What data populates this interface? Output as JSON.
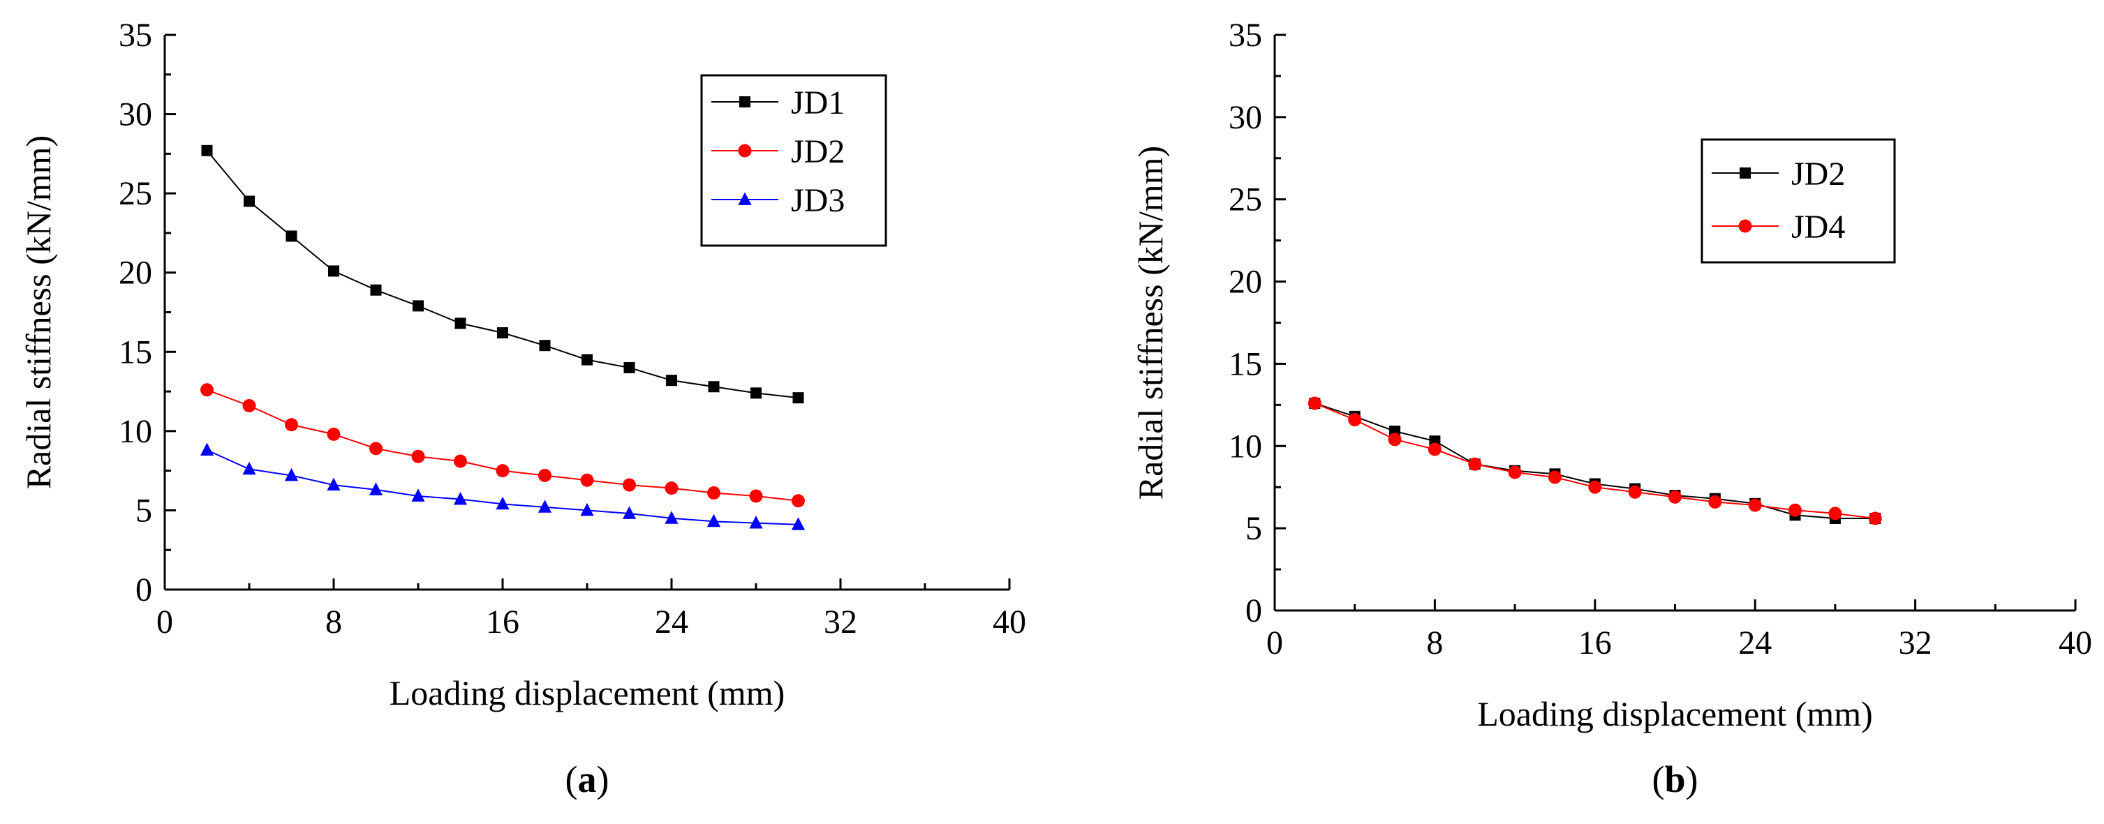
{
  "colors": {
    "axis": "#000000",
    "jd1": "#000000",
    "jd2": "#ff0000",
    "jd3": "#0000ff",
    "jd4": "#ff0000"
  },
  "chart_data": [
    {
      "type": "line",
      "panel_label": "a",
      "xlabel": "Loading displacement (mm)",
      "ylabel": "Radial stiffness (kN/mm)",
      "xlim": [
        0,
        40
      ],
      "ylim": [
        0,
        35
      ],
      "x_ticks": [
        0,
        8,
        16,
        24,
        32,
        40
      ],
      "y_ticks": [
        0,
        5,
        10,
        15,
        20,
        25,
        30,
        35
      ],
      "grid": false,
      "legend_position": "top-right",
      "x": [
        2,
        4,
        6,
        8,
        10,
        12,
        14,
        16,
        18,
        20,
        22,
        24,
        26,
        28,
        30
      ],
      "series": [
        {
          "name": "JD1",
          "marker": "square",
          "color": "#000000",
          "values": [
            27.7,
            24.5,
            22.3,
            20.1,
            18.9,
            17.9,
            16.8,
            16.2,
            15.4,
            14.5,
            14.0,
            13.2,
            12.8,
            12.4,
            12.1
          ]
        },
        {
          "name": "JD2",
          "marker": "circle",
          "color": "#ff0000",
          "values": [
            12.6,
            11.6,
            10.4,
            9.8,
            8.9,
            8.4,
            8.1,
            7.5,
            7.2,
            6.9,
            6.6,
            6.4,
            6.1,
            5.9,
            5.6
          ]
        },
        {
          "name": "JD3",
          "marker": "triangle",
          "color": "#0000ff",
          "values": [
            8.8,
            7.6,
            7.2,
            6.6,
            6.3,
            5.9,
            5.7,
            5.4,
            5.2,
            5.0,
            4.8,
            4.5,
            4.3,
            4.2,
            4.1
          ]
        }
      ]
    },
    {
      "type": "line",
      "panel_label": "b",
      "xlabel": "Loading displacement (mm)",
      "ylabel": "Radial stiffness (kN/mm)",
      "xlim": [
        0,
        40
      ],
      "ylim": [
        0,
        35
      ],
      "x_ticks": [
        0,
        8,
        16,
        24,
        32,
        40
      ],
      "y_ticks": [
        0,
        5,
        10,
        15,
        20,
        25,
        30,
        35
      ],
      "grid": false,
      "legend_position": "top-right",
      "x": [
        2,
        4,
        6,
        8,
        10,
        12,
        14,
        16,
        18,
        20,
        22,
        24,
        26,
        28,
        30
      ],
      "series": [
        {
          "name": "JD2",
          "marker": "square",
          "color": "#000000",
          "values": [
            12.6,
            11.8,
            10.9,
            10.3,
            8.9,
            8.5,
            8.3,
            7.7,
            7.4,
            7.0,
            6.8,
            6.5,
            5.8,
            5.6,
            5.6
          ]
        },
        {
          "name": "JD4",
          "marker": "circle",
          "color": "#ff0000",
          "values": [
            12.6,
            11.6,
            10.4,
            9.8,
            8.9,
            8.4,
            8.1,
            7.5,
            7.2,
            6.9,
            6.6,
            6.4,
            6.1,
            5.9,
            5.6
          ]
        }
      ]
    }
  ]
}
